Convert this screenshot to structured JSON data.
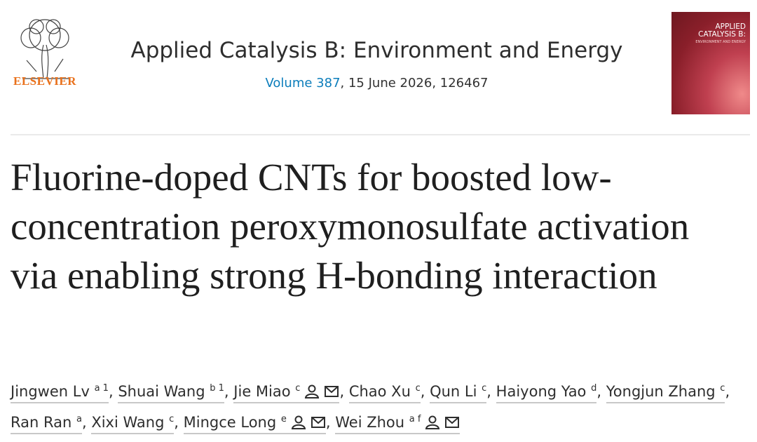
{
  "header": {
    "publisher": "ELSEVIER",
    "journal": "Applied Catalysis B: Environment and Energy",
    "volume": "Volume 387",
    "issue_info": ", 15 June 2026, 126467",
    "cover_title": "APPLIED CATALYSIS B:",
    "cover_subtitle": "ENVIRONMENT AND ENERGY"
  },
  "article": {
    "title": "Fluorine-doped CNTs for boosted low-concentration peroxymonosulfate activation via enabling strong H-bonding interaction",
    "author_separator": ",",
    "authors": [
      {
        "name": "Jingwen Lv",
        "affiliations": "a 1",
        "corresponding": false
      },
      {
        "name": "Shuai Wang",
        "affiliations": "b 1",
        "corresponding": false
      },
      {
        "name": "Jie Miao",
        "affiliations": "c",
        "corresponding": true
      },
      {
        "name": "Chao Xu",
        "affiliations": "c",
        "corresponding": false
      },
      {
        "name": "Qun Li",
        "affiliations": "c",
        "corresponding": false
      },
      {
        "name": "Haiyong Yao",
        "affiliations": "d",
        "corresponding": false
      },
      {
        "name": "Yongjun Zhang",
        "affiliations": "c",
        "corresponding": false
      },
      {
        "name": "Ran Ran",
        "affiliations": "a",
        "corresponding": false
      },
      {
        "name": "Xixi Wang",
        "affiliations": "c",
        "corresponding": false
      },
      {
        "name": "Mingce Long",
        "affiliations": "e",
        "corresponding": true
      },
      {
        "name": "Wei Zhou",
        "affiliations": "a f",
        "corresponding": true
      }
    ]
  }
}
